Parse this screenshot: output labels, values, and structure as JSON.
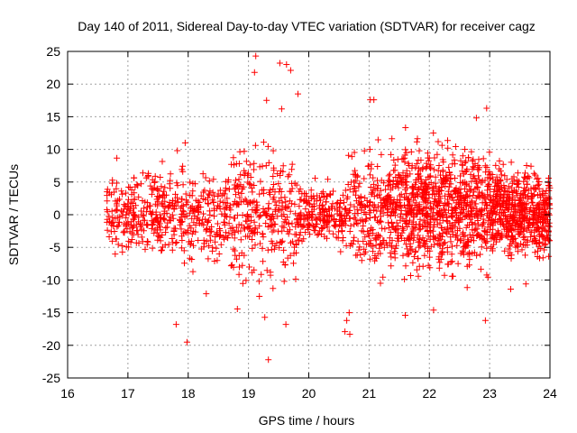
{
  "chart_data": {
    "type": "scatter",
    "title": "Day 140 of 2011, Sidereal Day-to-day VTEC variation (SDTVAR) for receiver cagz",
    "xlabel": "GPS time / hours",
    "ylabel": "SDTVAR / TECUs",
    "xlim": [
      16,
      24
    ],
    "ylim": [
      -25,
      25
    ],
    "xticks": [
      "16",
      "17",
      "18",
      "19",
      "20",
      "21",
      "22",
      "23",
      "24"
    ],
    "yticks": [
      "-25",
      "-20",
      "-15",
      "-10",
      "-5",
      "0",
      "5",
      "10",
      "15",
      "20",
      "25"
    ],
    "grid": true,
    "marker": "+",
    "series_color": "#ff0000",
    "series": [
      {
        "name": "SDTVAR",
        "x_range": [
          16.65,
          24.0
        ],
        "note": "dense cloud of several thousand + markers; band roughly -5..5 TECU from 16.7-21 h widening to about -10..10 TECU between 21-23 h",
        "outliers": [
          {
            "x": 19.12,
            "y": 24.3
          },
          {
            "x": 19.1,
            "y": 21.8
          },
          {
            "x": 19.52,
            "y": 23.2
          },
          {
            "x": 19.63,
            "y": 23.0
          },
          {
            "x": 19.7,
            "y": 22.1
          },
          {
            "x": 19.82,
            "y": 18.5
          },
          {
            "x": 19.3,
            "y": 17.5
          },
          {
            "x": 19.55,
            "y": 16.2
          },
          {
            "x": 21.02,
            "y": 17.6
          },
          {
            "x": 21.08,
            "y": 17.6
          },
          {
            "x": 22.95,
            "y": 16.3
          },
          {
            "x": 22.78,
            "y": 14.8
          },
          {
            "x": 17.8,
            "y": -16.8
          },
          {
            "x": 17.98,
            "y": -19.5
          },
          {
            "x": 19.33,
            "y": -22.2
          },
          {
            "x": 19.27,
            "y": -15.7
          },
          {
            "x": 19.62,
            "y": -16.8
          },
          {
            "x": 20.6,
            "y": -17.9
          },
          {
            "x": 20.68,
            "y": -18.3
          },
          {
            "x": 20.63,
            "y": -16.2
          },
          {
            "x": 20.67,
            "y": -15.0
          },
          {
            "x": 21.6,
            "y": -15.4
          },
          {
            "x": 22.07,
            "y": -14.6
          },
          {
            "x": 22.93,
            "y": -16.2
          },
          {
            "x": 18.3,
            "y": -12.1
          },
          {
            "x": 19.18,
            "y": -12.5
          },
          {
            "x": 23.35,
            "y": -11.4
          },
          {
            "x": 23.6,
            "y": -10.6
          },
          {
            "x": 17.95,
            "y": 11.0
          },
          {
            "x": 17.82,
            "y": 9.8
          }
        ]
      }
    ]
  }
}
